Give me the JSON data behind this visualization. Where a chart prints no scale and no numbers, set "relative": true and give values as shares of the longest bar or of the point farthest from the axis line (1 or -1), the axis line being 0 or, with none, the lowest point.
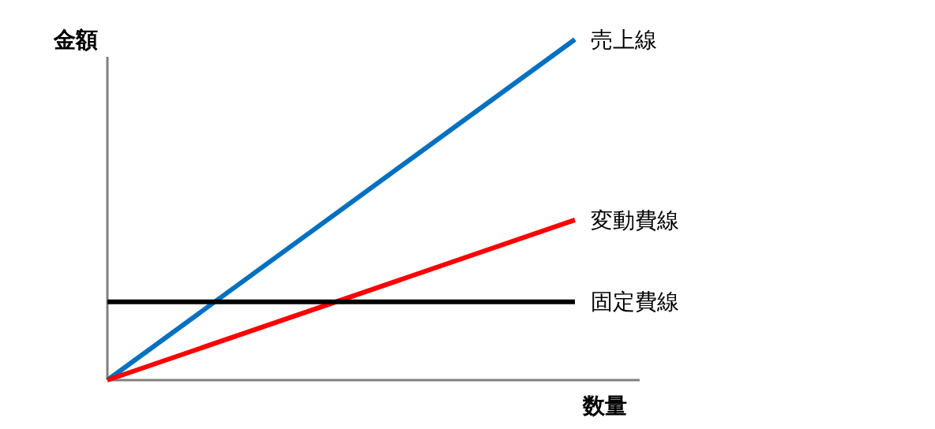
{
  "chart_data": {
    "type": "line",
    "relative": true,
    "xlabel": "数量",
    "ylabel": "金額",
    "categories": [
      null,
      null
    ],
    "marker": "none",
    "line_style": "solid",
    "series": [
      {
        "name": "売上線",
        "color": "#0070c0",
        "values": [
          0,
          1
        ]
      },
      {
        "name": "変動費線",
        "color": "#ff0000",
        "values": [
          0,
          0.47
        ]
      },
      {
        "name": "固定費線",
        "color": "#000000",
        "values": [
          0.23,
          0.23
        ]
      }
    ]
  }
}
